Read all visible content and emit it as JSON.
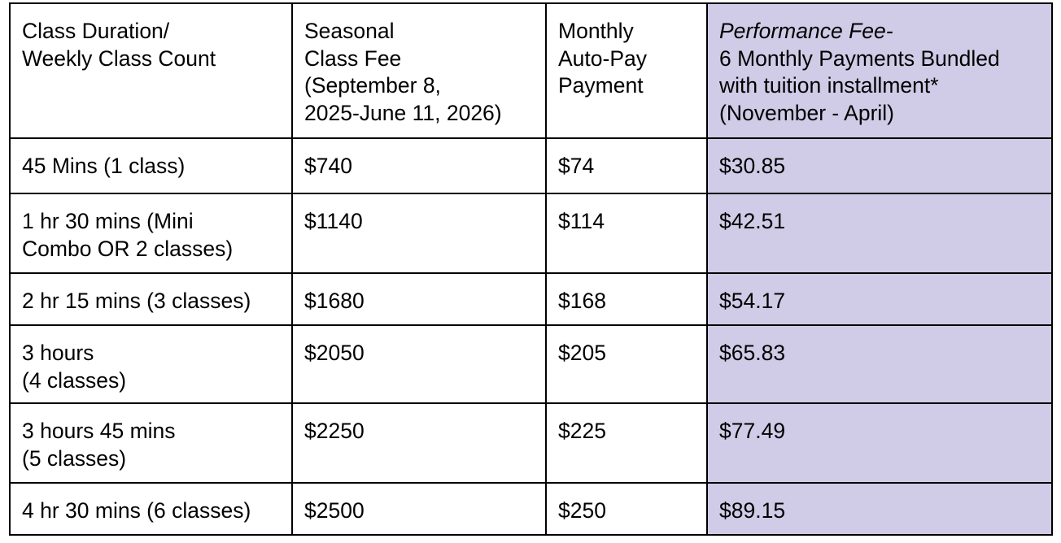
{
  "header": {
    "duration": [
      "Class Duration/",
      "Weekly Class Count"
    ],
    "seasonal": [
      "Seasonal",
      "Class Fee",
      "(September 8,",
      "2025-June 11, 2026)"
    ],
    "monthly": [
      "Monthly",
      "Auto-Pay",
      "Payment"
    ],
    "performance_title": "Performance Fee-",
    "performance": [
      "6 Monthly Payments Bundled",
      "with tuition installment*",
      "(November - April)"
    ]
  },
  "rows": [
    {
      "duration": [
        "45 Mins (1 class)"
      ],
      "seasonal": "$740",
      "monthly": "$74",
      "performance": "$30.85"
    },
    {
      "duration": [
        "1 hr 30 mins (Mini",
        "Combo OR 2 classes)"
      ],
      "seasonal": "$1140",
      "monthly": "$114",
      "performance": "$42.51"
    },
    {
      "duration": [
        "2 hr 15 mins (3 classes)"
      ],
      "seasonal": "$1680",
      "monthly": "$168",
      "performance": "$54.17"
    },
    {
      "duration": [
        "3 hours",
        "(4 classes)"
      ],
      "seasonal": "$2050",
      "monthly": "$205",
      "performance": "$65.83"
    },
    {
      "duration": [
        "3 hours 45 mins",
        "(5 classes)"
      ],
      "seasonal": "$2250",
      "monthly": "$225",
      "performance": "$77.49"
    },
    {
      "duration": [
        "4 hr 30 mins (6 classes)"
      ],
      "seasonal": "$2500",
      "monthly": "$250",
      "performance": "$89.15"
    }
  ],
  "colors": {
    "highlight": "#d0cbe6",
    "border": "#000000"
  }
}
